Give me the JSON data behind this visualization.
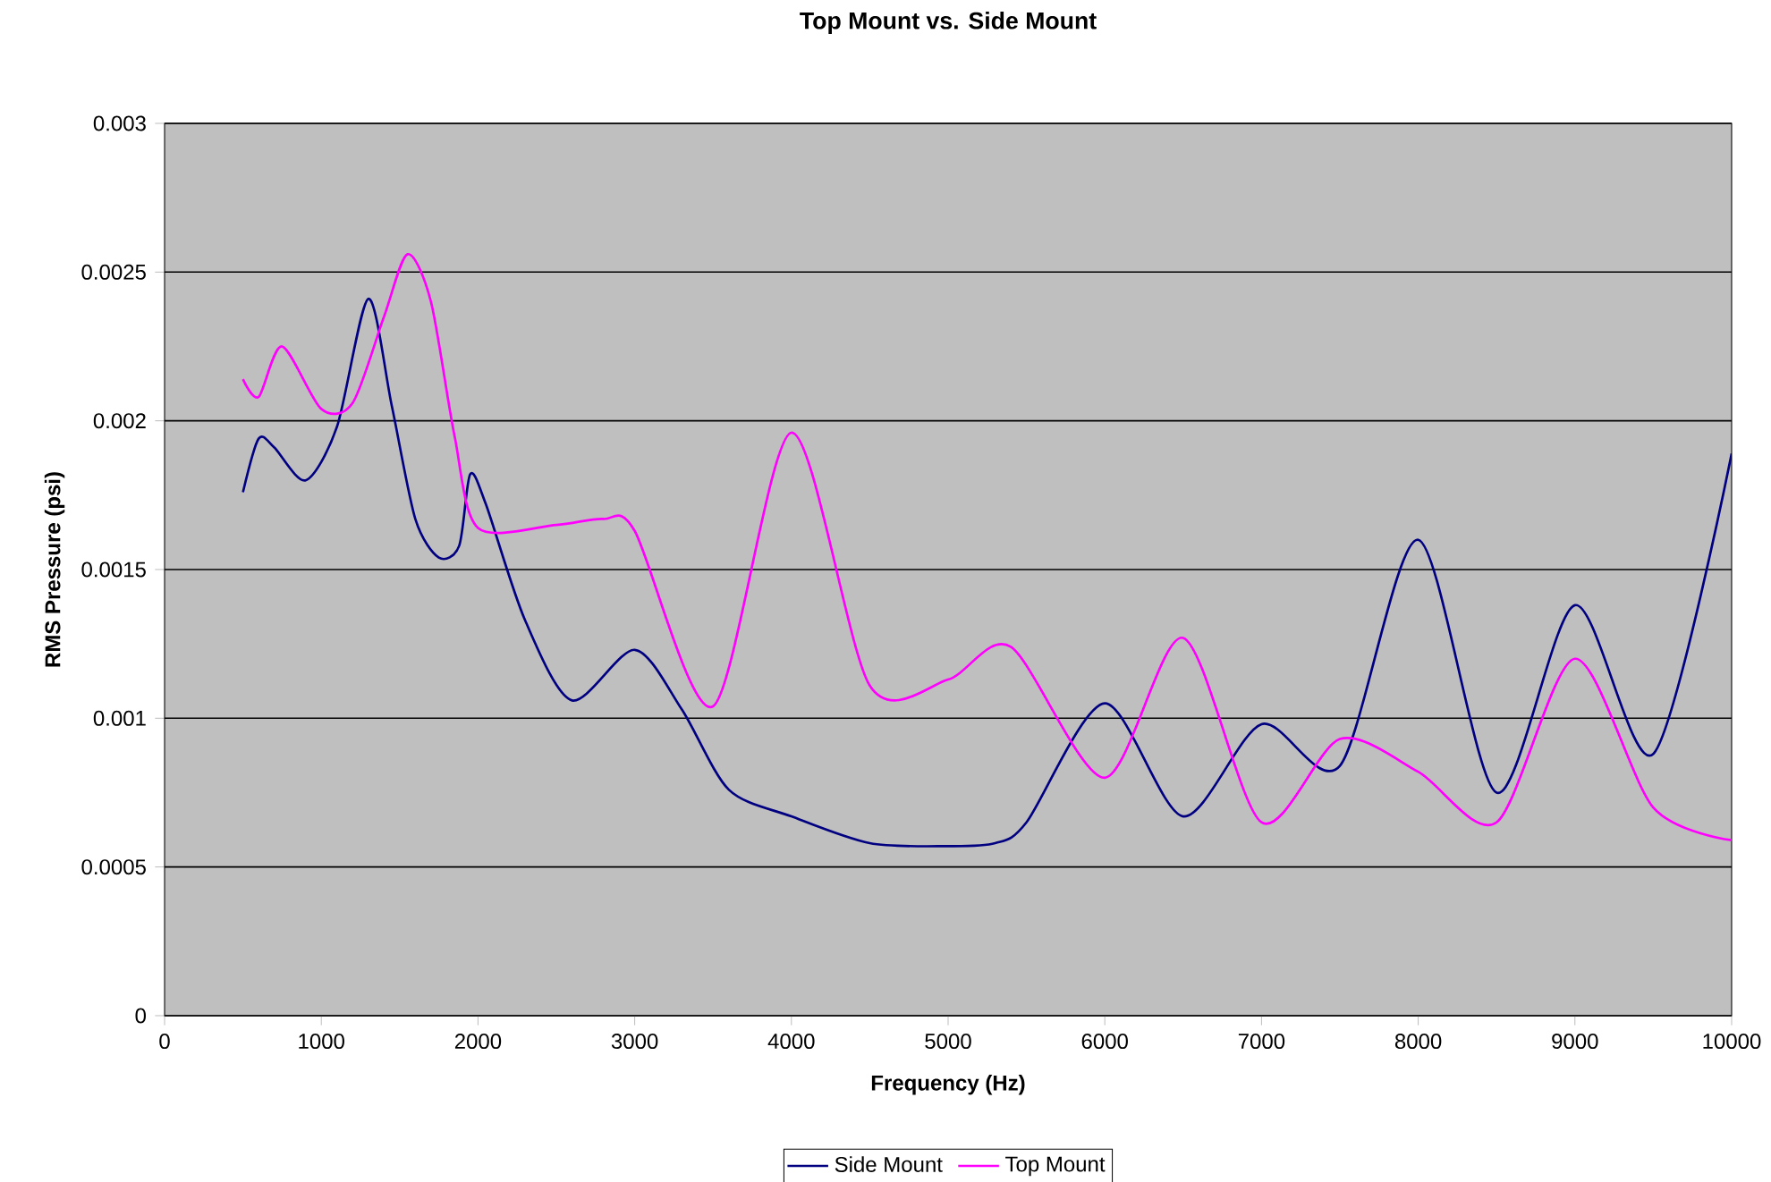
{
  "chart_data": {
    "type": "line",
    "title": "Top Mount vs. Side Mount",
    "xlabel": "Frequency (Hz)",
    "ylabel": "RMS Pressure (psi)",
    "xlim": [
      0,
      10000
    ],
    "xticks": [
      0,
      1000,
      2000,
      3000,
      4000,
      5000,
      6000,
      7000,
      8000,
      9000,
      10000
    ],
    "ylim": [
      0,
      0.003
    ],
    "yticks": [
      0,
      0.0005,
      0.001,
      0.0015,
      0.002,
      0.0025,
      0.003
    ],
    "grid": "y",
    "legend": "bottom",
    "marker": "none",
    "line_style": "solid",
    "series": [
      {
        "name": "Side Mount",
        "color": "#000080",
        "x": [
          500,
          600,
          700,
          900,
          1100,
          1300,
          1450,
          1600,
          1750,
          1880,
          1950,
          2050,
          2300,
          2600,
          3000,
          3300,
          3600,
          4000,
          4500,
          5000,
          5300,
          5500,
          6000,
          6500,
          7000,
          7500,
          8000,
          8500,
          9000,
          9500,
          10000
        ],
        "values": [
          0.00176,
          0.00194,
          0.00191,
          0.0018,
          0.00198,
          0.00241,
          0.00205,
          0.00167,
          0.00154,
          0.00158,
          0.00182,
          0.00172,
          0.00133,
          0.00106,
          0.00123,
          0.00103,
          0.00076,
          0.00067,
          0.00058,
          0.00057,
          0.00058,
          0.00065,
          0.00105,
          0.00067,
          0.00098,
          0.00084,
          0.0016,
          0.00075,
          0.00138,
          0.00088,
          0.00189
        ]
      },
      {
        "name": "Top Mount",
        "color": "#ff00ff",
        "x": [
          500,
          600,
          750,
          1000,
          1200,
          1400,
          1550,
          1700,
          1850,
          2000,
          2500,
          2800,
          3000,
          3500,
          4000,
          4500,
          5000,
          5400,
          6000,
          6500,
          7000,
          7500,
          8000,
          8500,
          9000,
          9500,
          10000
        ],
        "values": [
          0.00214,
          0.00208,
          0.00225,
          0.00204,
          0.00206,
          0.00235,
          0.00256,
          0.0024,
          0.00195,
          0.00164,
          0.00165,
          0.00167,
          0.00163,
          0.00104,
          0.00196,
          0.00111,
          0.00113,
          0.00124,
          0.0008,
          0.00127,
          0.00065,
          0.00093,
          0.00082,
          0.00065,
          0.0012,
          0.0007,
          0.00059
        ]
      }
    ]
  }
}
